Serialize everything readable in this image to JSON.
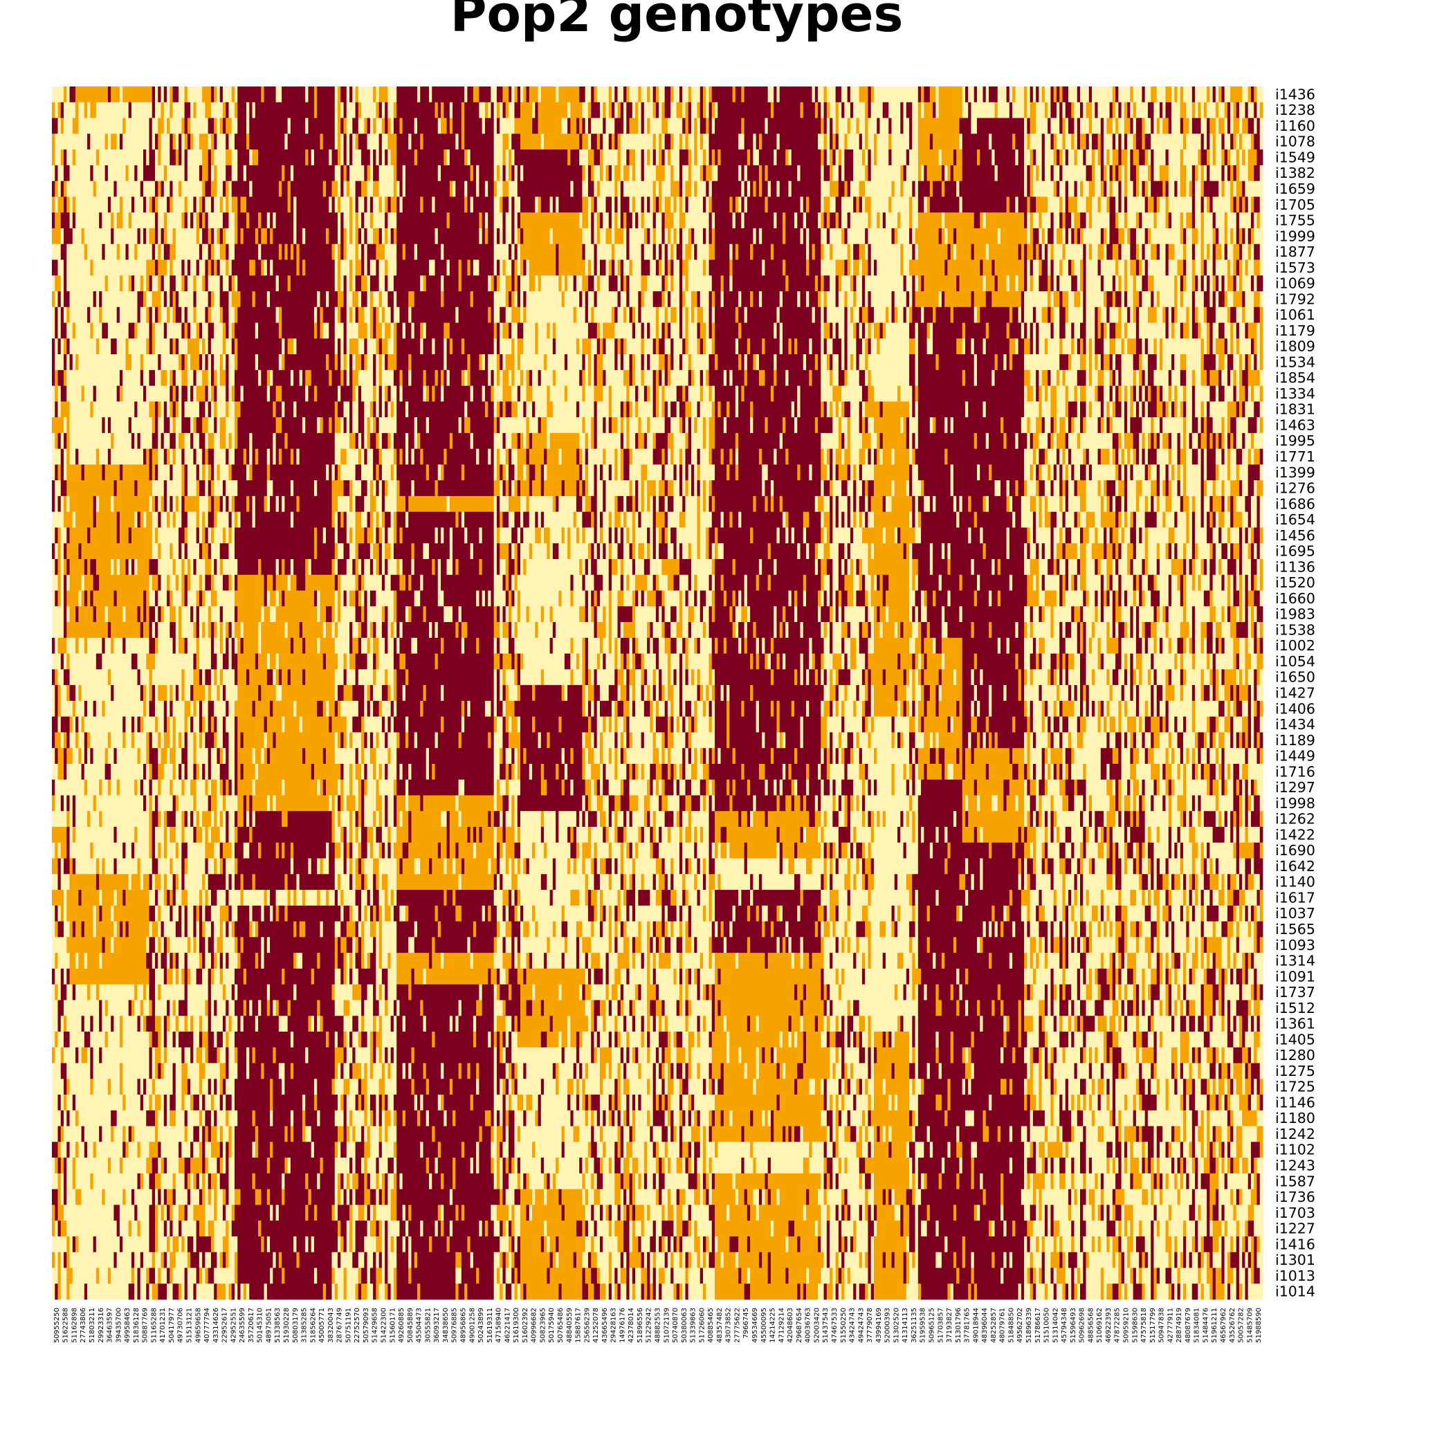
{
  "chart_data": {
    "type": "heatmap",
    "title": "Pop2 genotypes",
    "xlabel": "",
    "ylabel": "",
    "value_scale": [
      0,
      1,
      2
    ],
    "colors": [
      "#fff4b3",
      "#f6a300",
      "#7e0021"
    ],
    "row_labels": [
      "i1436",
      "i1238",
      "i1160",
      "i1078",
      "i1549",
      "i1382",
      "i1659",
      "i1705",
      "i1755",
      "i1999",
      "i1877",
      "i1573",
      "i1069",
      "i1792",
      "i1061",
      "i1179",
      "i1809",
      "i1534",
      "i1854",
      "i1334",
      "i1831",
      "i1463",
      "i1995",
      "i1771",
      "i1399",
      "i1276",
      "i1686",
      "i1654",
      "i1456",
      "i1695",
      "i1136",
      "i1520",
      "i1660",
      "i1983",
      "i1538",
      "i1002",
      "i1054",
      "i1650",
      "i1427",
      "i1406",
      "i1434",
      "i1189",
      "i1449",
      "i1716",
      "i1297",
      "i1998",
      "i1262",
      "i1422",
      "i1690",
      "i1642",
      "i1140",
      "i1617",
      "i1037",
      "i1565",
      "i1093",
      "i1314",
      "i1091",
      "i1737",
      "i1512",
      "i1361",
      "i1405",
      "i1280",
      "i1275",
      "i1725",
      "i1146",
      "i1180",
      "i1242",
      "i1102",
      "i1243",
      "i1587",
      "i1736",
      "i1703",
      "i1227",
      "i1416",
      "i1301",
      "i1013",
      "i1014"
    ],
    "col_labels": [
      "50955250",
      "51622588",
      "51162898",
      "27743806",
      "51803211",
      "29923316",
      "36463597",
      "39435700",
      "49958463",
      "51836128",
      "50887769",
      "51165288",
      "41701231",
      "50417977",
      "49730706",
      "51513121",
      "49659658",
      "40777794",
      "43314626",
      "22952617",
      "42952551",
      "24635599",
      "35720617",
      "50145310",
      "48975051",
      "51338563",
      "51930228",
      "50803179",
      "31385285",
      "51856264",
      "45005771",
      "38320043",
      "28767749",
      "50751191",
      "22752570",
      "50579093",
      "51429658",
      "51422300",
      "51560171",
      "49260885",
      "50845889",
      "45504473",
      "30555821",
      "36093217",
      "34838650",
      "50976885",
      "48956865",
      "49001258",
      "50243899",
      "51619311",
      "47158940",
      "46221417",
      "51619300",
      "51602392",
      "40996682",
      "50823965",
      "50175940",
      "50765486",
      "48840559",
      "15887617",
      "25656239",
      "41252078",
      "43665496",
      "29428163",
      "14976176",
      "42378014",
      "51896556",
      "51229242",
      "48882553",
      "51072139",
      "50740870",
      "50380063",
      "51339863",
      "51726060",
      "40885465",
      "48357482",
      "43073852",
      "27775622",
      "7966745",
      "49534669",
      "45500095",
      "14214225",
      "47129214",
      "42048603",
      "29687654",
      "40036763",
      "52003420",
      "51437543",
      "47467533",
      "51550250",
      "43424743",
      "49424743",
      "37779078",
      "43994169",
      "52000393",
      "51302520",
      "41314113",
      "36251135",
      "51959538",
      "50965125",
      "51703857",
      "37193827",
      "51301796",
      "37781765",
      "49018944",
      "48396044",
      "48252857",
      "48079761",
      "51848850",
      "49562702",
      "51896339",
      "51786617",
      "51510050",
      "51314042",
      "45794348",
      "51596493",
      "50962698",
      "48856568",
      "51069162",
      "46922393",
      "47872285",
      "50959210",
      "51598630",
      "47575818",
      "51517799",
      "50947838",
      "42777911",
      "28874919",
      "48087679",
      "51834081",
      "51484476",
      "51961211",
      "46567962",
      "43526762",
      "50057282",
      "51485709",
      "51988590"
    ]
  }
}
